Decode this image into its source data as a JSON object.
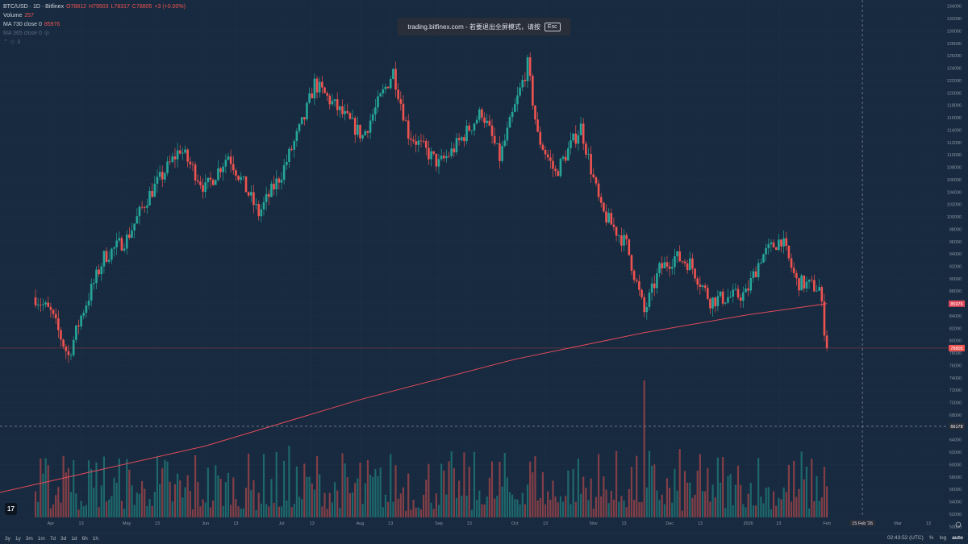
{
  "legend": {
    "symbol": "BTC/USD · 1D · Bitfinex",
    "o": "O78812",
    "h": "H79503",
    "l": "L78317",
    "c": "C78805",
    "chg": "+3 (+0.00%)",
    "volume_label": "Volume",
    "volume_value": "257",
    "ma1_label": "MA 730 close 0",
    "ma1_value": "85976",
    "ma2_label": "MA 365 close 0",
    "indicator_count": "3"
  },
  "toast": {
    "text": "trading.bitfinex.com - 若要退出全屏模式，请按",
    "key": "Esc"
  },
  "price_axis": {
    "labels": [
      "134000",
      "132000",
      "130000",
      "128000",
      "126000",
      "124000",
      "122000",
      "120000",
      "118000",
      "116000",
      "114000",
      "112000",
      "110000",
      "108000",
      "106000",
      "104000",
      "102000",
      "100000",
      "98000",
      "96000",
      "94000",
      "92000",
      "90000",
      "88000",
      "86000",
      "84000",
      "82000",
      "80000",
      "78000",
      "76000",
      "74000",
      "72000",
      "70000",
      "68000",
      "66000",
      "64000",
      "62000",
      "60000",
      "58000",
      "56000",
      "54000",
      "52000",
      "50000"
    ],
    "ma_tag": "85976",
    "last_tag": "78805",
    "crosshair_tag": "66178"
  },
  "time_axis": {
    "labels": [
      "Apr",
      "13",
      "May",
      "13",
      "Jun",
      "13",
      "Jul",
      "13",
      "Aug",
      "13",
      "Sep",
      "13",
      "Oct",
      "13",
      "Nov",
      "13",
      "Dec",
      "13",
      "2026",
      "13",
      "Feb",
      "Mar",
      "13"
    ],
    "crosshair_date": "15 Feb '26"
  },
  "toolbar": {
    "ranges": [
      "3y",
      "1y",
      "3m",
      "1m",
      "7d",
      "3d",
      "1d",
      "6h",
      "1h"
    ],
    "time": "02:43:52 (UTC)",
    "pct": "%",
    "log": "log",
    "auto": "auto"
  },
  "colors": {
    "up": "#26a69a",
    "down": "#ef5350",
    "ma": "#e04a5a",
    "bg": "#172a3f",
    "grid": "#1e3147"
  },
  "chart_data": {
    "type": "candlestick",
    "title": "BTC/USD · 1D · Bitfinex",
    "ylim": [
      49000,
      135000
    ],
    "xlabel": "",
    "ylabel": "",
    "series": [
      {
        "name": "BTC/USD",
        "anchors": [
          [
            "2025-03-26",
            87000
          ],
          [
            "2025-04-01",
            84500
          ],
          [
            "2025-04-08",
            77500
          ],
          [
            "2025-04-13",
            84000
          ],
          [
            "2025-04-22",
            93500
          ],
          [
            "2025-05-01",
            96500
          ],
          [
            "2025-05-09",
            103000
          ],
          [
            "2025-05-22",
            111000
          ],
          [
            "2025-06-01",
            104500
          ],
          [
            "2025-06-10",
            110000
          ],
          [
            "2025-06-22",
            100500
          ],
          [
            "2025-07-01",
            107000
          ],
          [
            "2025-07-10",
            116000
          ],
          [
            "2025-07-14",
            121500
          ],
          [
            "2025-08-02",
            113000
          ],
          [
            "2025-08-14",
            123500
          ],
          [
            "2025-08-20",
            113500
          ],
          [
            "2025-09-01",
            108500
          ],
          [
            "2025-09-06",
            110500
          ],
          [
            "2025-09-18",
            117000
          ],
          [
            "2025-09-25",
            109500
          ],
          [
            "2025-10-06",
            124500
          ],
          [
            "2025-10-10",
            113000
          ],
          [
            "2025-10-17",
            107000
          ],
          [
            "2025-10-27",
            114500
          ],
          [
            "2025-11-04",
            101000
          ],
          [
            "2025-11-14",
            95500
          ],
          [
            "2025-11-21",
            84500
          ],
          [
            "2025-11-27",
            91500
          ],
          [
            "2025-12-03",
            93500
          ],
          [
            "2025-12-09",
            92500
          ],
          [
            "2025-12-17",
            86500
          ],
          [
            "2025-12-31",
            87500
          ],
          [
            "2026-01-06",
            93500
          ],
          [
            "2026-01-14",
            96500
          ],
          [
            "2026-01-20",
            89500
          ],
          [
            "2026-01-29",
            88500
          ],
          [
            "2026-02-01",
            78805
          ]
        ]
      },
      {
        "name": "MA 730 close 0",
        "anchors": [
          [
            "2025-03-12",
            55500
          ],
          [
            "2025-06-01",
            63000
          ],
          [
            "2025-08-01",
            70500
          ],
          [
            "2025-10-01",
            77000
          ],
          [
            "2025-11-21",
            81300
          ],
          [
            "2026-01-01",
            84200
          ],
          [
            "2026-02-01",
            85976
          ]
        ]
      }
    ],
    "volume": {
      "name": "Volume",
      "last": 257
    }
  }
}
